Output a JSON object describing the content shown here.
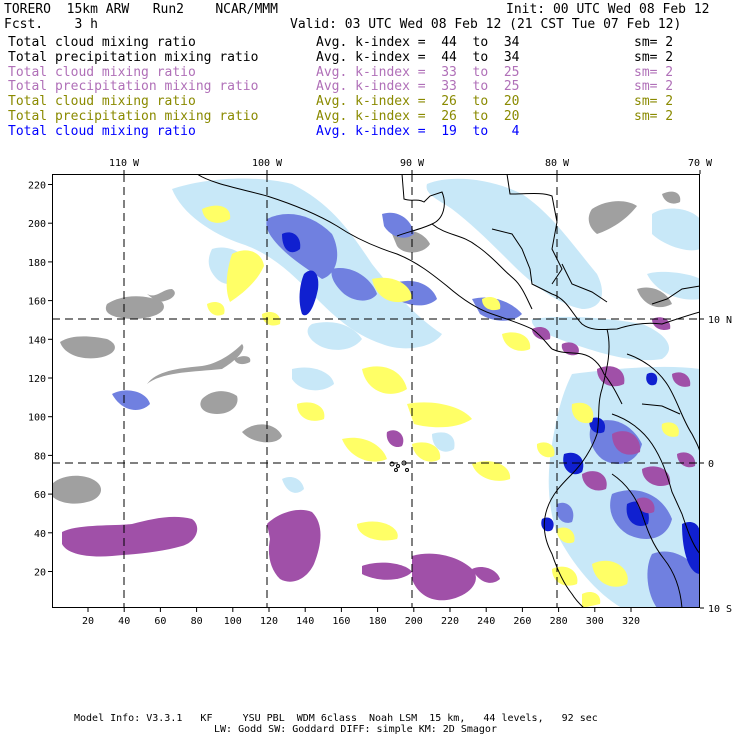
{
  "header": {
    "model": "TORERO  15km ARW   Run2    NCAR/MMM",
    "init": "Init: 00 UTC Wed 08 Feb 12",
    "fcst": "Fcst.    3 h",
    "valid": "Valid: 03 UTC Wed 08 Feb 12 (21 CST Tue 07 Feb 12)"
  },
  "legend": [
    {
      "field": "Total cloud mixing ratio",
      "kindex": "Avg. k-index =  44  to  34",
      "sm": "sm= 2",
      "color": "#000000"
    },
    {
      "field": "Total precipitation mixing ratio",
      "kindex": "Avg. k-index =  44  to  34",
      "sm": "sm= 2",
      "color": "#000000"
    },
    {
      "field": "Total cloud mixing ratio",
      "kindex": "Avg. k-index =  33  to  25",
      "sm": "sm= 2",
      "color": "#b070b8"
    },
    {
      "field": "Total precipitation mixing ratio",
      "kindex": "Avg. k-index =  33  to  25",
      "sm": "sm= 2",
      "color": "#b070b8"
    },
    {
      "field": "Total cloud mixing ratio",
      "kindex": "Avg. k-index =  26  to  20",
      "sm": "sm= 2",
      "color": "#8a8a00"
    },
    {
      "field": "Total precipitation mixing ratio",
      "kindex": "Avg. k-index =  26  to  20",
      "sm": "sm= 2",
      "color": "#8a8a00"
    },
    {
      "field": "Total cloud mixing ratio",
      "kindex": "Avg. k-index =  19  to   4",
      "sm": "",
      "color": "#0000ff"
    }
  ],
  "map": {
    "lon_labels": [
      "110 W",
      "100 W",
      "90 W",
      "80 W",
      "70 W"
    ],
    "lat_labels": [
      "10 N",
      "0",
      "10 S"
    ],
    "x_ticks": [
      "20",
      "40",
      "60",
      "80",
      "100",
      "120",
      "140",
      "160",
      "180",
      "200",
      "220",
      "240",
      "260",
      "280",
      "300",
      "320"
    ],
    "y_ticks": [
      "20",
      "40",
      "60",
      "80",
      "100",
      "120",
      "140",
      "160",
      "180",
      "200",
      "220"
    ],
    "colors": {
      "gray": "#a0a0a0",
      "yellow": "#ffff66",
      "purple": "#a050a8",
      "lightblue": "#c8e8f8",
      "midblue": "#7080e0",
      "blue": "#1020d0",
      "grid": "#000000"
    }
  },
  "footer": {
    "line1": "Model Info: V3.3.1   KF     YSU PBL  WDM 6class  Noah LSM  15 km,   44 levels,   92 sec",
    "line2": "LW: Godd SW: Goddard DIFF: simple KM: 2D Smagor"
  }
}
